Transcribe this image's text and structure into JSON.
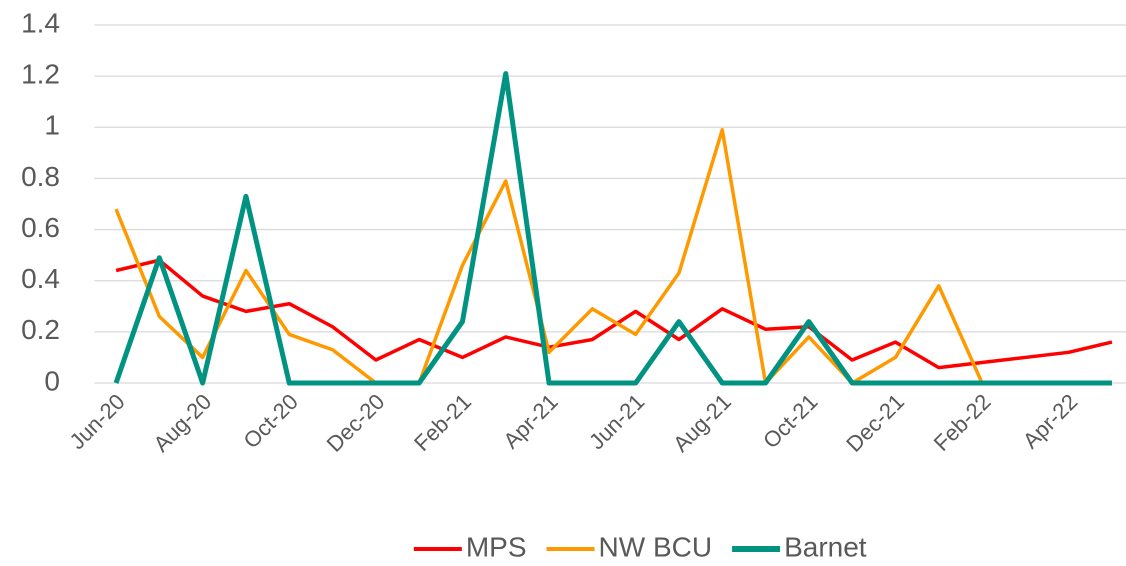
{
  "chart_data": {
    "type": "line",
    "categories": [
      "Jun-20",
      null,
      "Aug-20",
      null,
      "Oct-20",
      null,
      "Dec-20",
      null,
      "Feb-21",
      null,
      "Apr-21",
      null,
      "Jun-21",
      null,
      "Aug-21",
      null,
      "Oct-21",
      null,
      "Dec-21",
      null,
      "Feb-22",
      null,
      "Apr-22",
      null
    ],
    "series": [
      {
        "name": "MPS",
        "color": "#ff0000",
        "values": [
          0.44,
          0.48,
          0.34,
          0.28,
          0.31,
          0.22,
          0.09,
          0.17,
          0.1,
          0.18,
          0.14,
          0.17,
          0.28,
          0.17,
          0.29,
          0.21,
          0.22,
          0.09,
          0.16,
          0.06,
          0.08,
          0.1,
          0.12,
          0.16
        ]
      },
      {
        "name": "NW BCU",
        "color": "#ff9900",
        "values": [
          0.68,
          0.26,
          0.1,
          0.44,
          0.19,
          0.13,
          0,
          0,
          0.46,
          0.79,
          0.12,
          0.29,
          0.19,
          0.43,
          0.99,
          0,
          0.18,
          0,
          0.1,
          0.38,
          0,
          0,
          0,
          0
        ]
      },
      {
        "name": "Barnet",
        "color": "#009382",
        "values": [
          0,
          0.49,
          0,
          0.73,
          0,
          0,
          0,
          0,
          0.24,
          1.21,
          0,
          0,
          0,
          0.24,
          0,
          0,
          0.24,
          0,
          0,
          0,
          0,
          0,
          0,
          0
        ]
      }
    ],
    "ylim": [
      0,
      1.4
    ],
    "yticks": [
      0,
      0.2,
      0.4,
      0.6,
      0.8,
      1,
      1.2,
      1.4
    ],
    "grid": true,
    "legend": "bottom"
  }
}
